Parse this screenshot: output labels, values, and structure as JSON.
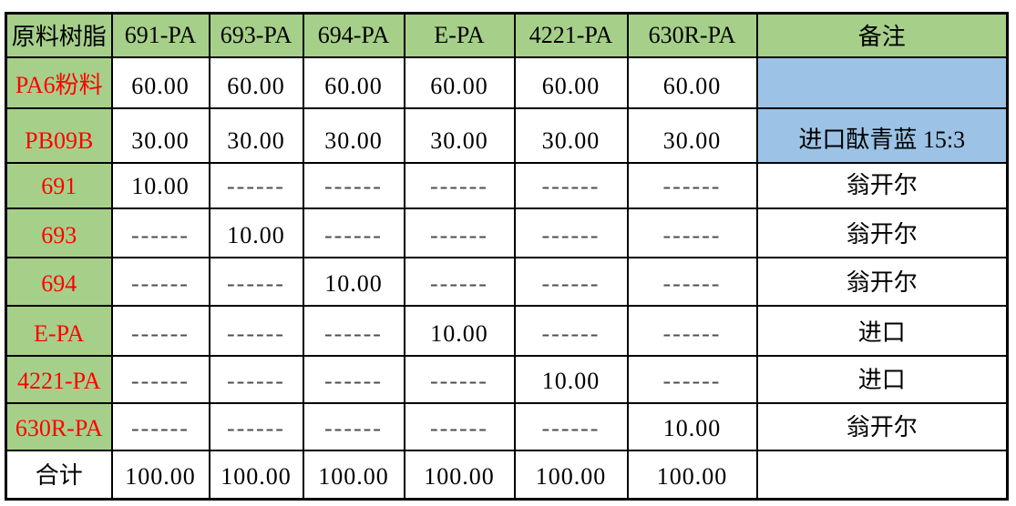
{
  "colors": {
    "header_bg": "#a6d08a",
    "row_label_text": "#ff0000",
    "remark_bg": "#9cc3e5",
    "border": "#000000",
    "dash_text": "#4d4d4d",
    "value_text": "#000000"
  },
  "chart_data": {
    "type": "table",
    "columns": [
      "原料树脂",
      "691-PA",
      "693-PA",
      "694-PA",
      "E-PA",
      "4221-PA",
      "630R-PA",
      "备注"
    ],
    "rows": [
      [
        "PA6粉料",
        "60.00",
        "60.00",
        "60.00",
        "60.00",
        "60.00",
        "60.00",
        ""
      ],
      [
        "PB09B",
        "30.00",
        "30.00",
        "30.00",
        "30.00",
        "30.00",
        "30.00",
        "进口酞青蓝 15:3"
      ],
      [
        "691",
        "10.00",
        "------",
        "------",
        "------",
        "------",
        "------",
        "翁开尔"
      ],
      [
        "693",
        "------",
        "10.00",
        "------",
        "------",
        "------",
        "------",
        "翁开尔"
      ],
      [
        "694",
        "------",
        "------",
        "10.00",
        "------",
        "------",
        "------",
        "翁开尔"
      ],
      [
        "E-PA",
        "------",
        "------",
        "------",
        "10.00",
        "------",
        "------",
        "进口"
      ],
      [
        "4221-PA",
        "------",
        "------",
        "------",
        "------",
        "10.00",
        "------",
        "进口"
      ],
      [
        "630R-PA",
        "------",
        "------",
        "------",
        "------",
        "------",
        "10.00",
        "翁开尔"
      ],
      [
        "合计",
        "100.00",
        "100.00",
        "100.00",
        "100.00",
        "100.00",
        "100.00",
        ""
      ]
    ]
  }
}
